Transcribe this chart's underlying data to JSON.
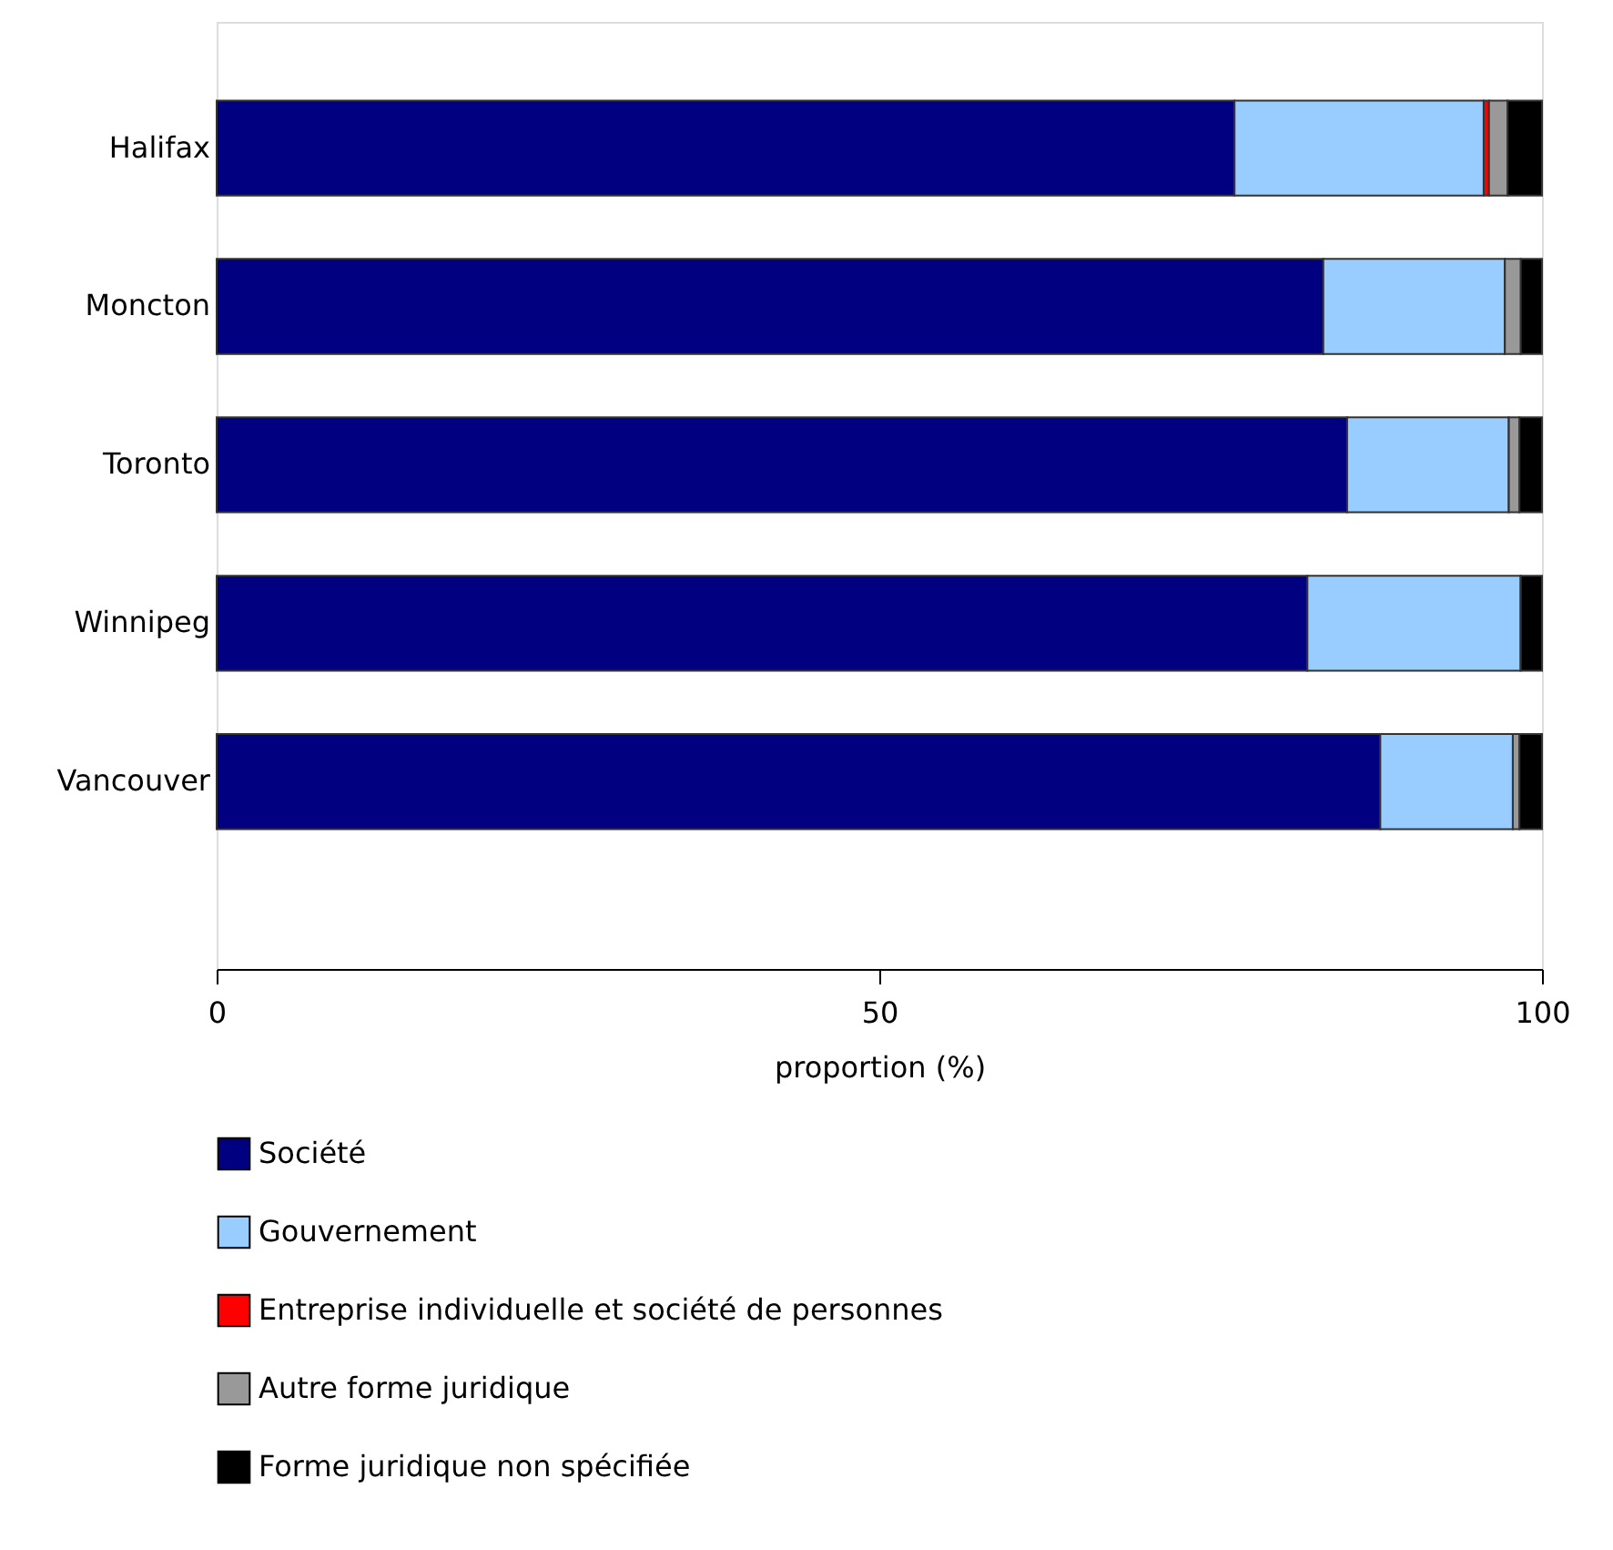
{
  "chart_data": {
    "type": "bar",
    "orientation": "horizontal",
    "stacked": true,
    "categories": [
      "Halifax",
      "Moncton",
      "Toronto",
      "Winnipeg",
      "Vancouver"
    ],
    "series": [
      {
        "name": "Société",
        "color": "#000080",
        "values": [
          76.8,
          83.5,
          85.3,
          82.3,
          87.8
        ]
      },
      {
        "name": "Gouvernement",
        "color": "#99ccff",
        "values": [
          18.8,
          13.7,
          12.2,
          16.1,
          10.0
        ]
      },
      {
        "name": "Entreprise individuelle et société de personnes",
        "color": "#ff0000",
        "values": [
          0.4,
          0,
          0,
          0,
          0
        ]
      },
      {
        "name": "Autre forme juridique",
        "color": "#999999",
        "values": [
          1.4,
          1.2,
          0.8,
          0,
          0.5
        ]
      },
      {
        "name": "Forme juridique non spécifiée",
        "color": "#000000",
        "values": [
          2.6,
          1.6,
          1.7,
          1.6,
          1.7
        ]
      }
    ],
    "xlabel": "proportion (%)",
    "xlim": [
      0,
      100
    ],
    "xticks": [
      0,
      50,
      100
    ],
    "grid": false,
    "legend": "bottom"
  }
}
